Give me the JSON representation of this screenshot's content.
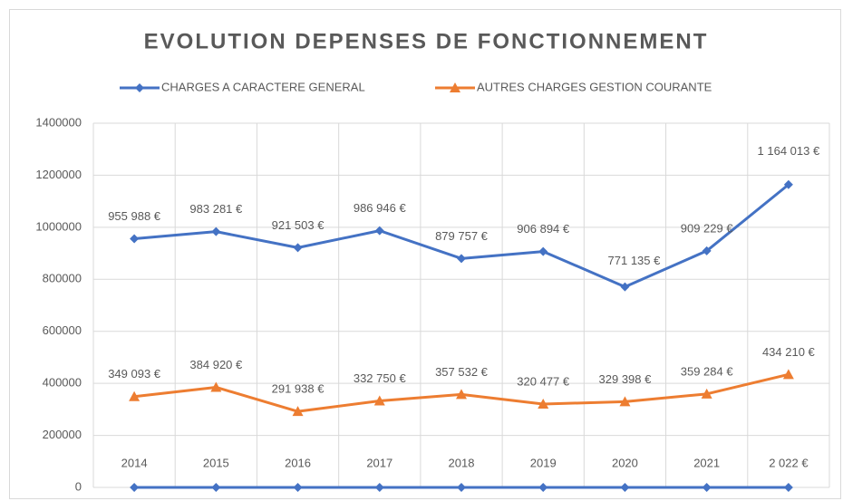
{
  "chart_data": {
    "type": "line",
    "title": "EVOLUTION DEPENSES DE FONCTIONNEMENT",
    "categories": [
      "2014",
      "2015",
      "2016",
      "2017",
      "2018",
      "2019",
      "2020",
      "2021",
      "2 022 €"
    ],
    "series": [
      {
        "name": "CHARGES A CARACTERE GENERAL",
        "color": "#4472c4",
        "marker": "diamond",
        "values": [
          955988,
          983281,
          921503,
          986946,
          879757,
          906894,
          771135,
          909229,
          1164013
        ],
        "value_labels": [
          "955 988 €",
          "983 281 €",
          "921 503 €",
          "986 946 €",
          "879 757 €",
          "906 894 €",
          "771 135 €",
          "909 229 €",
          "1 164 013 €"
        ]
      },
      {
        "name": "AUTRES CHARGES GESTION COURANTE",
        "color": "#ed7d31",
        "marker": "triangle",
        "values": [
          349093,
          384920,
          291938,
          332750,
          357532,
          320477,
          329398,
          359284,
          434210
        ],
        "value_labels": [
          "349 093 €",
          "384 920 €",
          "291 938 €",
          "332 750 €",
          "357 532 €",
          "320 477 €",
          "329 398 €",
          "359 284 €",
          "434 210 €"
        ]
      },
      {
        "color": "#4472c4",
        "marker": "diamond",
        "values": [
          0,
          0,
          0,
          0,
          0,
          0,
          0,
          0,
          0
        ]
      }
    ],
    "ylim": [
      0,
      1400000
    ],
    "yticks": [
      0,
      200000,
      400000,
      600000,
      800000,
      1000000,
      1200000,
      1400000
    ],
    "grid": true,
    "legend": "top"
  }
}
